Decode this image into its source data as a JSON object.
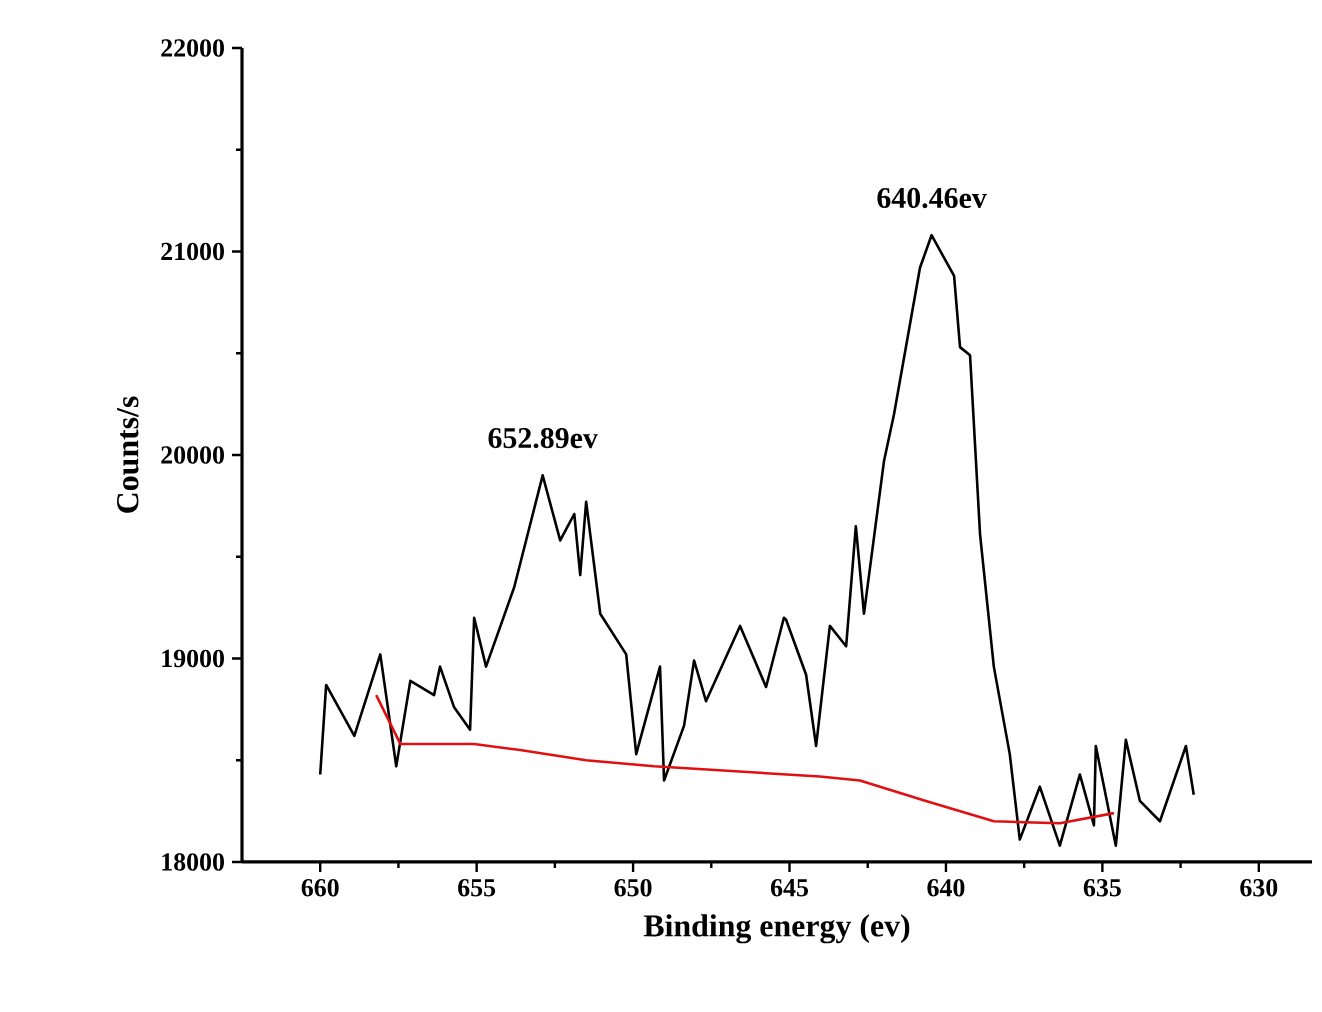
{
  "chart_data": {
    "type": "line",
    "xlabel": "Binding energy (ev)",
    "ylabel": "Counts/s",
    "xlim": [
      662.5,
      628.3
    ],
    "xticks": [
      660,
      655,
      650,
      645,
      640,
      635,
      630
    ],
    "ylim": [
      18000,
      22000
    ],
    "yticks": [
      18000,
      19000,
      20000,
      21000,
      22000
    ],
    "grid": false,
    "marker": "none",
    "line_style": "solid",
    "series": [
      {
        "color": "#000000",
        "x": [
          660.0,
          659.81,
          658.91,
          658.08,
          657.57,
          657.12,
          656.36,
          656.17,
          655.72,
          655.21,
          655.08,
          654.7,
          653.8,
          653.42,
          652.89,
          652.33,
          651.88,
          651.69,
          651.5,
          651.05,
          650.22,
          649.9,
          649.14,
          649.01,
          648.37,
          648.05,
          647.67,
          646.58,
          645.75,
          645.18,
          645.11,
          644.47,
          644.15,
          643.71,
          643.19,
          642.88,
          642.62,
          641.98,
          641.66,
          640.83,
          640.46,
          639.74,
          639.55,
          639.23,
          638.91,
          638.47,
          637.96,
          637.64,
          637.0,
          636.36,
          635.72,
          635.27,
          635.21,
          634.57,
          634.25,
          633.8,
          633.16,
          632.33,
          632.08
        ],
        "values": [
          18430,
          18870,
          18620,
          19020,
          18470,
          18890,
          18820,
          18960,
          18760,
          18650,
          19200,
          18960,
          19350,
          19580,
          19900,
          19580,
          19710,
          19410,
          19770,
          19220,
          19020,
          18530,
          18960,
          18400,
          18670,
          18990,
          18790,
          19160,
          18860,
          19200,
          19190,
          18920,
          18570,
          19160,
          19060,
          19650,
          19220,
          19970,
          20200,
          20920,
          21080,
          20880,
          20530,
          20490,
          19610,
          18960,
          18530,
          18110,
          18370,
          18080,
          18430,
          18180,
          18570,
          18080,
          18600,
          18300,
          18200,
          18570,
          18330
        ]
      },
      {
        "color": "#e01010",
        "x": [
          658.21,
          657.44,
          655.08,
          653.61,
          651.5,
          649.33,
          644.03,
          642.75,
          640.64,
          638.47,
          636.36,
          634.63
        ],
        "values": [
          18820,
          18580,
          18580,
          18550,
          18500,
          18470,
          18420,
          18400,
          18300,
          18200,
          18190,
          18240
        ]
      }
    ],
    "annotations": [
      {
        "text": "652.89ev",
        "x": 652.89,
        "y": 19900
      },
      {
        "text": "640.46ev",
        "x": 640.46,
        "y": 21080
      }
    ]
  }
}
